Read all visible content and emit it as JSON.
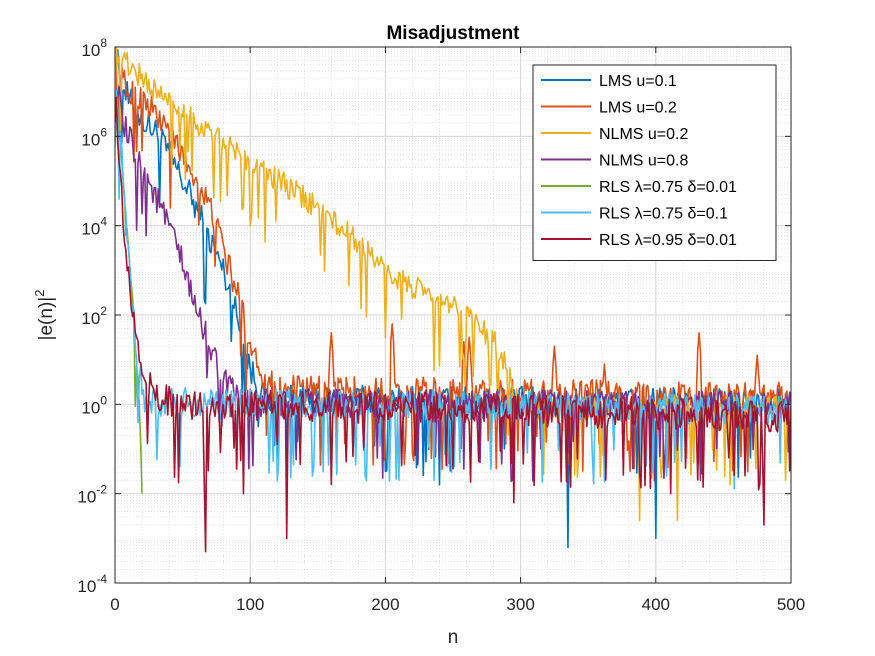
{
  "chart_data": {
    "type": "line",
    "title": "Misadjustment",
    "xlabel": "n",
    "ylabel": "|e(n)|",
    "ylabel_sup": "2",
    "xlim": [
      0,
      500
    ],
    "ylim": [
      0.0001,
      100000000
    ],
    "yscale": "log",
    "grid": true,
    "minor_grid": true,
    "legend_position": "top-right",
    "x_ticks": [
      {
        "value": 0,
        "label": "0"
      },
      {
        "value": 100,
        "label": "100"
      },
      {
        "value": 200,
        "label": "200"
      },
      {
        "value": 300,
        "label": "300"
      },
      {
        "value": 400,
        "label": "400"
      },
      {
        "value": 500,
        "label": "500"
      }
    ],
    "y_ticks": [
      {
        "value": 0.0001,
        "base": "10",
        "exp": "-4"
      },
      {
        "value": 0.01,
        "base": "10",
        "exp": "-2"
      },
      {
        "value": 1,
        "base": "10",
        "exp": "0"
      },
      {
        "value": 100,
        "base": "10",
        "exp": "2"
      },
      {
        "value": 10000,
        "base": "10",
        "exp": "4"
      },
      {
        "value": 1000000,
        "base": "10",
        "exp": "6"
      },
      {
        "value": 100000000,
        "base": "10",
        "exp": "8"
      }
    ],
    "series": [
      {
        "name": "LMS u=0.1",
        "color": "#0072BD",
        "start": 0,
        "end": 500,
        "envelope": [
          [
            0,
            7.8
          ],
          [
            10,
            6.8
          ],
          [
            20,
            6.4
          ],
          [
            30,
            6.1
          ],
          [
            40,
            5.6
          ],
          [
            50,
            5.0
          ],
          [
            60,
            4.4
          ],
          [
            70,
            3.7
          ],
          [
            80,
            3.0
          ],
          [
            90,
            2.0
          ],
          [
            100,
            0.8
          ],
          [
            110,
            0.1
          ],
          [
            500,
            0.0
          ]
        ],
        "noise": 0.35,
        "dips": [
          [
            200,
            -1.5
          ],
          [
            240,
            -1.8
          ],
          [
            335,
            -3.2
          ],
          [
            400,
            -3.0
          ],
          [
            470,
            -1.2
          ],
          [
            120,
            -1.2
          ]
        ]
      },
      {
        "name": "LMS u=0.2",
        "color": "#D95319",
        "start": 0,
        "end": 500,
        "envelope": [
          [
            0,
            7.6
          ],
          [
            10,
            7.0
          ],
          [
            20,
            6.8
          ],
          [
            30,
            6.5
          ],
          [
            40,
            6.1
          ],
          [
            50,
            5.6
          ],
          [
            60,
            5.0
          ],
          [
            70,
            4.4
          ],
          [
            80,
            3.5
          ],
          [
            90,
            2.5
          ],
          [
            100,
            1.4
          ],
          [
            110,
            0.6
          ],
          [
            120,
            0.3
          ],
          [
            500,
            0.15
          ]
        ],
        "noise": 0.35,
        "bumps": [
          [
            160,
            1.6
          ],
          [
            205,
            1.8
          ],
          [
            258,
            1.4
          ],
          [
            262,
            1.5
          ],
          [
            325,
            1.3
          ],
          [
            362,
            0.9
          ],
          [
            432,
            1.6
          ],
          [
            475,
            1.1
          ]
        ]
      },
      {
        "name": "NLMS u=0.2",
        "color": "#EDB120",
        "start": 0,
        "end": 500,
        "envelope": [
          [
            0,
            7.9
          ],
          [
            10,
            7.6
          ],
          [
            30,
            7.0
          ],
          [
            60,
            6.3
          ],
          [
            80,
            5.8
          ],
          [
            100,
            5.4
          ],
          [
            120,
            5.0
          ],
          [
            140,
            4.6
          ],
          [
            160,
            4.1
          ],
          [
            180,
            3.6
          ],
          [
            200,
            3.0
          ],
          [
            220,
            2.6
          ],
          [
            240,
            2.3
          ],
          [
            260,
            2.0
          ],
          [
            280,
            1.4
          ],
          [
            290,
            0.8
          ],
          [
            295,
            0.2
          ],
          [
            300,
            -0.1
          ],
          [
            500,
            -0.1
          ]
        ],
        "noise": 0.3,
        "dips": [
          [
            388,
            -2.6
          ],
          [
            416,
            -2.6
          ],
          [
            455,
            -1.8
          ]
        ]
      },
      {
        "name": "NLMS u=0.8",
        "color": "#7E2F8E",
        "start": 0,
        "end": 500,
        "envelope": [
          [
            0,
            7.5
          ],
          [
            5,
            6.3
          ],
          [
            15,
            5.6
          ],
          [
            25,
            5.0
          ],
          [
            35,
            4.3
          ],
          [
            45,
            3.6
          ],
          [
            55,
            2.6
          ],
          [
            65,
            1.7
          ],
          [
            75,
            0.9
          ],
          [
            85,
            0.3
          ],
          [
            95,
            0.0
          ],
          [
            500,
            -0.05
          ]
        ],
        "noise": 0.35,
        "dips": [
          [
            130,
            -1.3
          ],
          [
            240,
            -1.2
          ],
          [
            270,
            -1.3
          ],
          [
            315,
            -1.0
          ]
        ]
      },
      {
        "name": "RLS λ=0.75 δ=0.01",
        "color": "#77AC30",
        "start": 0,
        "end": 20,
        "envelope": [
          [
            0,
            7.4
          ],
          [
            3,
            6.0
          ],
          [
            6,
            4.8
          ],
          [
            9,
            3.6
          ],
          [
            12,
            2.5
          ],
          [
            15,
            1.3
          ],
          [
            17,
            0.4
          ],
          [
            19,
            -0.8
          ],
          [
            20,
            -1.5
          ]
        ],
        "noise": 0.35,
        "dips": [
          [
            20,
            -2.0
          ]
        ]
      },
      {
        "name": "RLS λ=0.75 δ=0.1",
        "color": "#4DBEEE",
        "start": 0,
        "end": 500,
        "envelope": [
          [
            0,
            7.4
          ],
          [
            3,
            6.2
          ],
          [
            6,
            5.0
          ],
          [
            9,
            3.8
          ],
          [
            12,
            2.6
          ],
          [
            15,
            1.6
          ],
          [
            18,
            0.7
          ],
          [
            22,
            0.0
          ],
          [
            500,
            -0.15
          ]
        ],
        "noise": 0.38,
        "dips": [
          [
            48,
            -1.4
          ],
          [
            160,
            -1.5
          ],
          [
            185,
            -1.6
          ],
          [
            210,
            -1.7
          ],
          [
            255,
            -1.3
          ]
        ]
      },
      {
        "name": "RLS λ=0.95 δ=0.01",
        "color": "#A2142F",
        "start": 0,
        "end": 500,
        "envelope": [
          [
            0,
            7.5
          ],
          [
            2,
            5.8
          ],
          [
            5,
            4.6
          ],
          [
            8,
            3.4
          ],
          [
            12,
            2.3
          ],
          [
            16,
            1.4
          ],
          [
            20,
            0.8
          ],
          [
            25,
            0.4
          ],
          [
            30,
            0.2
          ],
          [
            40,
            0.0
          ],
          [
            500,
            -0.3
          ]
        ],
        "noise": 0.4,
        "dips": [
          [
            67,
            -3.3
          ],
          [
            95,
            -2.0
          ],
          [
            127,
            -3.0
          ],
          [
            295,
            -2.2
          ],
          [
            480,
            -2.7
          ]
        ]
      }
    ]
  }
}
